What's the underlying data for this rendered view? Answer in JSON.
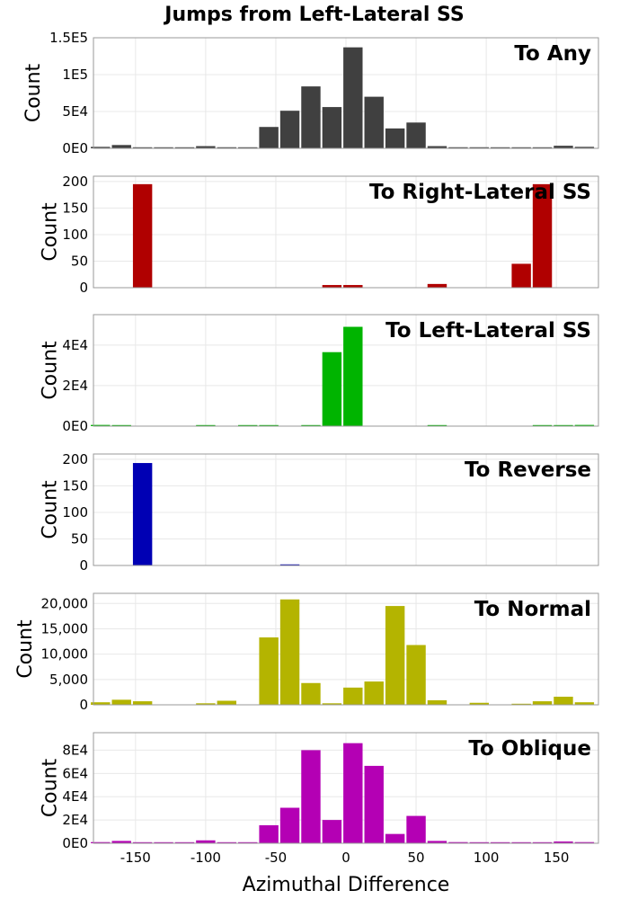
{
  "figure": {
    "title": "Jumps from Left-Lateral SS",
    "xlabel": "Azimuthal Difference"
  },
  "chart_data": [
    {
      "type": "bar",
      "title": "To Any",
      "ylabel": "Count",
      "color": "#404040",
      "xlim": [
        -180,
        180
      ],
      "ylim": [
        0,
        150000
      ],
      "yticks": [
        0,
        50000,
        100000,
        150000
      ],
      "ytick_labels": [
        "0E0",
        "5E4",
        "1E5",
        "1.5E5"
      ],
      "bin_centers": [
        -175,
        -160,
        -145,
        -130,
        -115,
        -100,
        -85,
        -70,
        -55,
        -40,
        -25,
        -10,
        5,
        20,
        35,
        50,
        65,
        80,
        95,
        110,
        125,
        140,
        155,
        170
      ],
      "values": [
        2000,
        4500,
        1200,
        500,
        500,
        3000,
        1500,
        1200,
        29000,
        51000,
        84000,
        56000,
        137000,
        70000,
        27000,
        35000,
        3000,
        1500,
        1500,
        1000,
        500,
        1000,
        3500,
        2000
      ]
    },
    {
      "type": "bar",
      "title": "To Right-Lateral SS",
      "ylabel": "Count",
      "color": "#b00000",
      "xlim": [
        -180,
        180
      ],
      "ylim": [
        0,
        210
      ],
      "yticks": [
        0,
        50,
        100,
        150,
        200
      ],
      "ytick_labels": [
        "0",
        "50",
        "100",
        "150",
        "200"
      ],
      "bin_centers": [
        -175,
        -160,
        -145,
        -130,
        -115,
        -100,
        -85,
        -70,
        -55,
        -40,
        -25,
        -10,
        5,
        20,
        35,
        50,
        65,
        80,
        95,
        110,
        125,
        140,
        155,
        170
      ],
      "values": [
        0,
        0,
        195,
        0,
        0,
        0,
        0,
        0,
        0,
        0,
        0,
        5,
        5,
        0,
        0,
        0,
        7,
        0,
        0,
        0,
        45,
        195,
        0,
        0
      ]
    },
    {
      "type": "bar",
      "title": "To Left-Lateral SS",
      "ylabel": "Count",
      "color": "#00b400",
      "xlim": [
        -180,
        180
      ],
      "ylim": [
        0,
        55000
      ],
      "yticks": [
        0,
        20000,
        40000
      ],
      "ytick_labels": [
        "0E0",
        "2E4",
        "4E4"
      ],
      "bin_centers": [
        -175,
        -160,
        -145,
        -130,
        -115,
        -100,
        -85,
        -70,
        -55,
        -40,
        -25,
        -10,
        5,
        20,
        35,
        50,
        65,
        80,
        95,
        110,
        125,
        140,
        155,
        170
      ],
      "values": [
        600,
        500,
        0,
        0,
        0,
        200,
        0,
        400,
        400,
        0,
        500,
        36500,
        49000,
        0,
        0,
        0,
        400,
        0,
        0,
        0,
        0,
        200,
        500,
        600
      ]
    },
    {
      "type": "bar",
      "title": "To Reverse",
      "ylabel": "Count",
      "color": "#0000b4",
      "xlim": [
        -180,
        180
      ],
      "ylim": [
        0,
        210
      ],
      "yticks": [
        0,
        50,
        100,
        150,
        200
      ],
      "ytick_labels": [
        "0",
        "50",
        "100",
        "150",
        "200"
      ],
      "bin_centers": [
        -175,
        -160,
        -145,
        -130,
        -115,
        -100,
        -85,
        -70,
        -55,
        -40,
        -25,
        -10,
        5,
        20,
        35,
        50,
        65,
        80,
        95,
        110,
        125,
        140,
        155,
        170
      ],
      "values": [
        0,
        0,
        193,
        0,
        0,
        0,
        0,
        0,
        0,
        2,
        0,
        0,
        0,
        0,
        0,
        0,
        0,
        0,
        0,
        0,
        0,
        0,
        0,
        0
      ]
    },
    {
      "type": "bar",
      "title": "To Normal",
      "ylabel": "Count",
      "color": "#b4b400",
      "xlim": [
        -180,
        180
      ],
      "ylim": [
        0,
        22000
      ],
      "yticks": [
        0,
        5000,
        10000,
        15000,
        20000
      ],
      "ytick_labels": [
        "0",
        "5,000",
        "10,000",
        "15,000",
        "20,000"
      ],
      "bin_centers": [
        -175,
        -160,
        -145,
        -130,
        -115,
        -100,
        -85,
        -70,
        -55,
        -40,
        -25,
        -10,
        5,
        20,
        35,
        50,
        65,
        80,
        95,
        110,
        125,
        140,
        155,
        170
      ],
      "values": [
        500,
        1000,
        700,
        0,
        0,
        300,
        800,
        0,
        13300,
        20800,
        4300,
        300,
        3400,
        4600,
        19500,
        11800,
        900,
        0,
        400,
        0,
        200,
        700,
        1600,
        500
      ]
    },
    {
      "type": "bar",
      "title": "To Oblique",
      "ylabel": "Count",
      "color": "#b400b4",
      "xlim": [
        -180,
        180
      ],
      "ylim": [
        0,
        95000
      ],
      "yticks": [
        0,
        20000,
        40000,
        60000,
        80000
      ],
      "ytick_labels": [
        "0E0",
        "2E4",
        "4E4",
        "6E4",
        "8E4"
      ],
      "bin_centers": [
        -175,
        -160,
        -145,
        -130,
        -115,
        -100,
        -85,
        -70,
        -55,
        -40,
        -25,
        -10,
        5,
        20,
        35,
        50,
        65,
        80,
        95,
        110,
        125,
        140,
        155,
        170
      ],
      "values": [
        1000,
        2000,
        500,
        200,
        200,
        2500,
        700,
        200,
        15500,
        30500,
        80000,
        20000,
        86000,
        66500,
        8000,
        23500,
        2000,
        1000,
        800,
        700,
        200,
        500,
        1500,
        1000
      ]
    }
  ],
  "x_axis": {
    "ticks": [
      -150,
      -100,
      -50,
      0,
      50,
      100,
      150
    ],
    "tick_labels": [
      "-150",
      "-100",
      "-50",
      "0",
      "50",
      "100",
      "150"
    ]
  }
}
